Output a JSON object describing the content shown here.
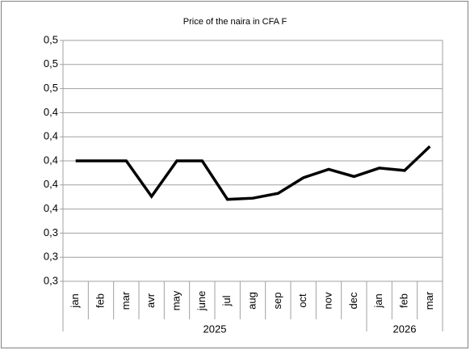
{
  "chart_data": {
    "type": "line",
    "title": "Price of the naira in CFA F",
    "categories": [
      "jan",
      "feb",
      "mar",
      "avr",
      "may",
      "june",
      "jul",
      "aug",
      "sep",
      "oct",
      "nov",
      "dec",
      "jan",
      "feb",
      "mar"
    ],
    "groups": [
      {
        "label": "2025",
        "size": 12
      },
      {
        "label": "2026",
        "size": 3
      }
    ],
    "values": [
      0.4,
      0.4,
      0.4,
      0.3705,
      0.4,
      0.4,
      0.368,
      0.369,
      0.373,
      0.386,
      0.393,
      0.387,
      0.394,
      0.392,
      0.412
    ],
    "color": "#000000",
    "ylim": [
      0.3,
      0.5
    ],
    "yticks": [
      {
        "value": 0.3,
        "label": "0,3"
      },
      {
        "value": 0.32,
        "label": "0,3"
      },
      {
        "value": 0.34,
        "label": "0,3"
      },
      {
        "value": 0.36,
        "label": "0,4"
      },
      {
        "value": 0.38,
        "label": "0,4"
      },
      {
        "value": 0.4,
        "label": "0,4"
      },
      {
        "value": 0.42,
        "label": "0,4"
      },
      {
        "value": 0.44,
        "label": "0,4"
      },
      {
        "value": 0.46,
        "label": "0,5"
      },
      {
        "value": 0.48,
        "label": "0,5"
      },
      {
        "value": 0.5,
        "label": "0,5"
      }
    ],
    "grid": true
  }
}
